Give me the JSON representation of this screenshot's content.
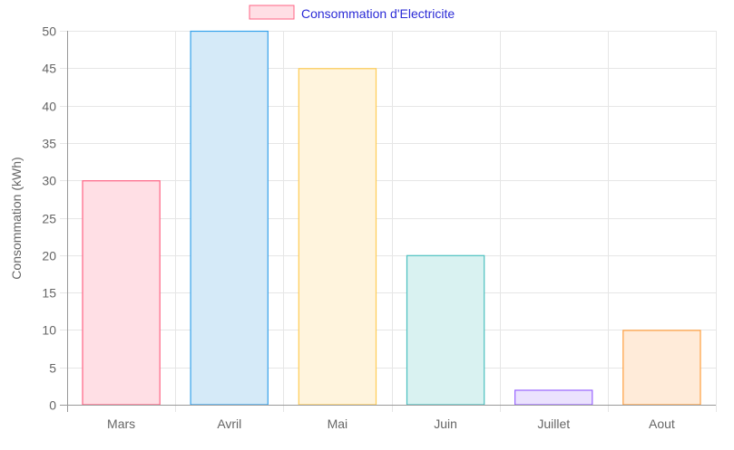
{
  "chart_data": {
    "type": "bar",
    "categories": [
      "Mars",
      "Avril",
      "Mai",
      "Juin",
      "Juillet",
      "Aout"
    ],
    "series": [
      {
        "name": "Consommation d'Electricite",
        "values": [
          30,
          50,
          45,
          20,
          2,
          10
        ]
      }
    ],
    "xlabel": "",
    "ylabel": "Consommation (kWh)",
    "ylim": [
      0,
      50
    ],
    "yticks": [
      0,
      5,
      10,
      15,
      20,
      25,
      30,
      35,
      40,
      45,
      50
    ],
    "grid": true,
    "legend_position": "top",
    "bar_fill_colors": [
      "#ffdfe5",
      "#d5eaf8",
      "#fff4dd",
      "#d9f2f1",
      "#ebe2fe",
      "#ffebd9"
    ],
    "bar_border_colors": [
      "#ff6384",
      "#36a2eb",
      "#ffcd56",
      "#4bc0c0",
      "#9966ff",
      "#ff9f40"
    ],
    "legend_text_color": "#2b2bd6"
  }
}
